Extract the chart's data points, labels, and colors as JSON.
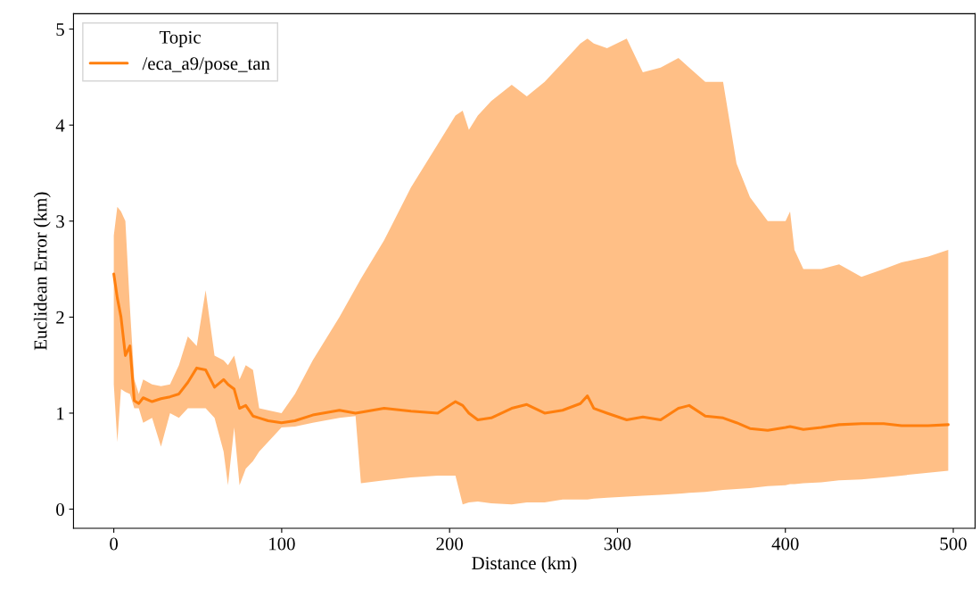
{
  "chart_data": {
    "type": "line",
    "xlabel": "Distance (km)",
    "ylabel": "Euclidean Error (km)",
    "legend_title": "Topic",
    "legend": "top left",
    "grid": false,
    "marker": "none",
    "line_style": "solid",
    "xlim": [
      -24,
      513
    ],
    "ylim": [
      -0.2,
      5.16
    ],
    "xticks": [
      0,
      100,
      200,
      300,
      400,
      500
    ],
    "yticks": [
      0,
      1,
      2,
      3,
      4,
      5
    ],
    "x": [
      0,
      2.1,
      4.3,
      6.9,
      9.6,
      12.2,
      14.9,
      17.5,
      22.8,
      28.1,
      33.5,
      38.8,
      44.1,
      49.4,
      54.7,
      60.0,
      65.4,
      68.0,
      71.7,
      74.9,
      78.6,
      82.9,
      86.6,
      91.9,
      99.9,
      107.9,
      118.5,
      134.4,
      144.0,
      147.2,
      161.0,
      177.0,
      192.9,
      203.5,
      207.8,
      211.5,
      216.8,
      224.8,
      237.0,
      246.0,
      256.6,
      267.3,
      277.9,
      282.1,
      285.9,
      293.8,
      305.5,
      315.1,
      325.7,
      336.3,
      342.7,
      352.3,
      362.9,
      370.9,
      378.9,
      389.5,
      400.1,
      402.8,
      405.4,
      410.7,
      421.4,
      432.0,
      445.3,
      458.6,
      469.2,
      485.1,
      497.0
    ],
    "series": [
      {
        "name": "/eca_a9/pose_tan",
        "color": "#ff7f0e",
        "values": [
          2.45,
          2.2,
          2.0,
          1.6,
          1.7,
          1.13,
          1.1,
          1.16,
          1.12,
          1.15,
          1.17,
          1.2,
          1.32,
          1.47,
          1.45,
          1.27,
          1.35,
          1.3,
          1.25,
          1.05,
          1.08,
          0.97,
          0.95,
          0.92,
          0.9,
          0.92,
          0.98,
          1.03,
          1.0,
          1.01,
          1.05,
          1.02,
          1.0,
          1.12,
          1.08,
          1.0,
          0.93,
          0.95,
          1.05,
          1.09,
          1.0,
          1.03,
          1.1,
          1.18,
          1.05,
          1.0,
          0.93,
          0.96,
          0.93,
          1.05,
          1.08,
          0.97,
          0.95,
          0.9,
          0.84,
          0.82,
          0.85,
          0.86,
          0.85,
          0.83,
          0.85,
          0.88,
          0.89,
          0.89,
          0.87,
          0.87,
          0.88
        ],
        "lower": [
          1.3,
          0.7,
          1.25,
          1.22,
          1.2,
          1.05,
          1.05,
          0.9,
          0.95,
          0.65,
          1.0,
          0.95,
          1.05,
          1.05,
          1.05,
          0.95,
          0.6,
          0.25,
          0.85,
          0.25,
          0.42,
          0.5,
          0.6,
          0.7,
          0.85,
          0.86,
          0.9,
          0.95,
          0.97,
          0.27,
          0.3,
          0.33,
          0.35,
          0.35,
          0.05,
          0.07,
          0.08,
          0.06,
          0.05,
          0.07,
          0.07,
          0.1,
          0.1,
          0.1,
          0.11,
          0.12,
          0.13,
          0.14,
          0.15,
          0.16,
          0.17,
          0.18,
          0.2,
          0.21,
          0.22,
          0.24,
          0.25,
          0.26,
          0.26,
          0.27,
          0.28,
          0.3,
          0.31,
          0.33,
          0.35,
          0.38,
          0.4
        ],
        "upper": [
          2.85,
          3.15,
          3.1,
          3.0,
          2.1,
          1.35,
          1.2,
          1.35,
          1.3,
          1.28,
          1.3,
          1.5,
          1.8,
          1.7,
          2.28,
          1.6,
          1.55,
          1.5,
          1.6,
          1.35,
          1.5,
          1.45,
          1.05,
          1.03,
          1.0,
          1.2,
          1.55,
          2.0,
          2.3,
          2.4,
          2.8,
          3.35,
          3.8,
          4.1,
          4.15,
          3.95,
          4.1,
          4.25,
          4.42,
          4.3,
          4.45,
          4.65,
          4.85,
          4.9,
          4.85,
          4.8,
          4.9,
          4.55,
          4.6,
          4.7,
          4.6,
          4.45,
          4.45,
          3.6,
          3.25,
          3.0,
          3.0,
          3.1,
          2.7,
          2.5,
          2.5,
          2.55,
          2.42,
          2.5,
          2.57,
          2.63,
          2.7
        ]
      }
    ]
  }
}
